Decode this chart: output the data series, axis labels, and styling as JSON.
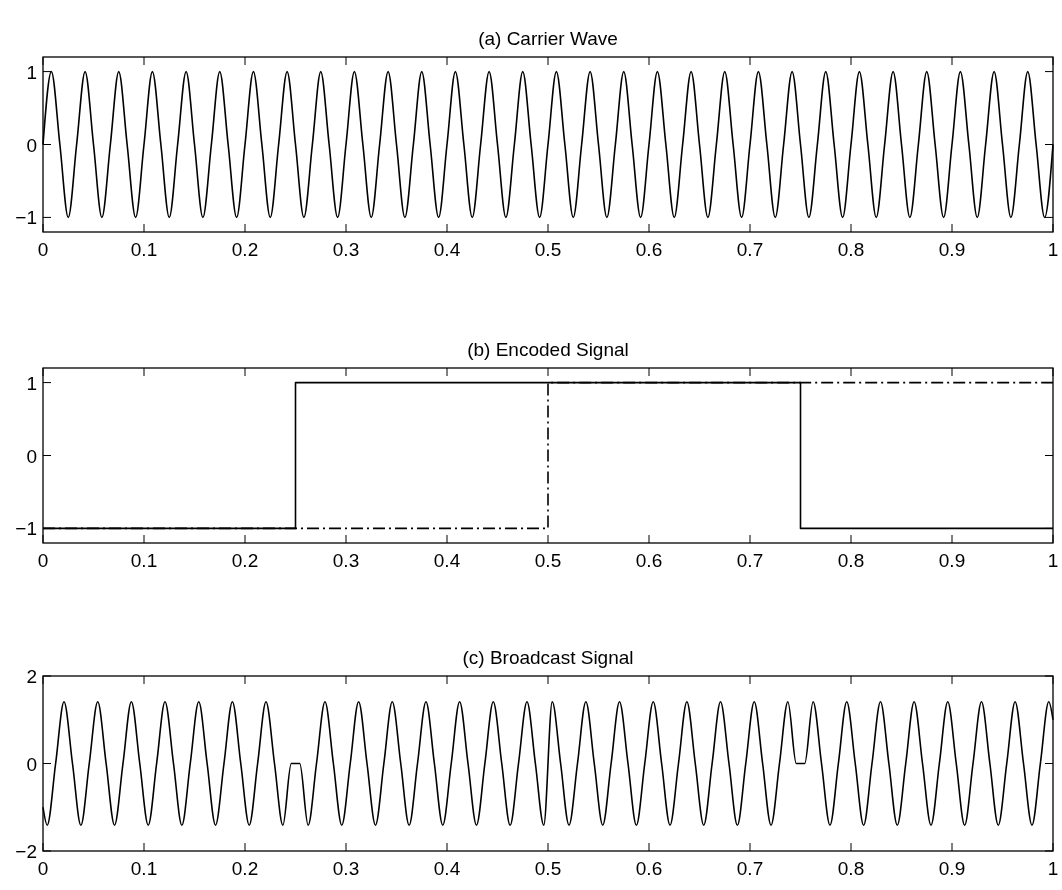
{
  "chart_data": [
    {
      "type": "line",
      "title": "(a) Carrier Wave",
      "xlim": [
        0,
        1
      ],
      "ylim": [
        -1.2,
        1.2
      ],
      "xticks": [
        0,
        0.1,
        0.2,
        0.3,
        0.4,
        0.5,
        0.6,
        0.7,
        0.8,
        0.9,
        1
      ],
      "yticks": [
        -1,
        0,
        1
      ],
      "series": [
        {
          "color": "#000000",
          "x": [
            0,
            0.0083,
            0.0167,
            0.025,
            0.0333,
            0.0417,
            0.05,
            0.0583,
            0.0667,
            0.075,
            0.0833,
            0.0917,
            0.1,
            0.1083,
            0.1167,
            0.125,
            0.1333,
            0.1417,
            0.15,
            0.1583,
            0.1667,
            0.175,
            0.1833,
            0.1917,
            0.2,
            0.2083,
            0.2167,
            0.225,
            0.2333,
            0.2417,
            0.25,
            0.2583,
            0.2667,
            0.275,
            0.2833,
            0.2917,
            0.3,
            0.3083,
            0.3167,
            0.325,
            0.3333,
            0.3417,
            0.35,
            0.3583,
            0.3667,
            0.375,
            0.3833,
            0.3917,
            0.4,
            0.4083,
            0.4167,
            0.425,
            0.4333,
            0.4417,
            0.45,
            0.4583,
            0.4667,
            0.475,
            0.4833,
            0.4917,
            0.5,
            0.5083,
            0.5167,
            0.525,
            0.5333,
            0.5417,
            0.55,
            0.5583,
            0.5667,
            0.575,
            0.5833,
            0.5917,
            0.6,
            0.6083,
            0.6167,
            0.625,
            0.6333,
            0.6417,
            0.65,
            0.6583,
            0.6667,
            0.675,
            0.6833,
            0.6917,
            0.7,
            0.7083,
            0.7167,
            0.725,
            0.7333,
            0.7417,
            0.75,
            0.7583,
            0.7667,
            0.775,
            0.7833,
            0.7917,
            0.8,
            0.8083,
            0.8167,
            0.825,
            0.8333,
            0.8417,
            0.85,
            0.8583,
            0.8667,
            0.875,
            0.8833,
            0.8917,
            0.9,
            0.9083,
            0.9167,
            0.925,
            0.9333,
            0.9417,
            0.95,
            0.9583,
            0.9667,
            0.975,
            0.9833,
            0.9917,
            1
          ],
          "values": [
            0,
            1,
            0,
            -1,
            0,
            1,
            0,
            -1,
            0,
            1,
            0,
            -1,
            0,
            1,
            0,
            -1,
            0,
            1,
            0,
            -1,
            0,
            1,
            0,
            -1,
            0,
            1,
            0,
            -1,
            0,
            1,
            0,
            -1,
            0,
            1,
            0,
            -1,
            0,
            1,
            0,
            -1,
            0,
            1,
            0,
            -1,
            0,
            1,
            0,
            -1,
            0,
            1,
            0,
            -1,
            0,
            1,
            0,
            -1,
            0,
            1,
            0,
            -1,
            0,
            1,
            0,
            -1,
            0,
            1,
            0,
            -1,
            0,
            1,
            0,
            -1,
            0,
            1,
            0,
            -1,
            0,
            1,
            0,
            -1,
            0,
            1,
            0,
            -1,
            0,
            1,
            0,
            -1,
            0,
            1,
            0,
            -1,
            0,
            1,
            0,
            -1,
            0,
            1,
            0,
            -1,
            0,
            1,
            0,
            -1,
            0,
            1,
            0,
            -1,
            0,
            1,
            0,
            -1,
            0,
            1,
            0,
            -1,
            0,
            1,
            0,
            -1,
            0
          ]
        }
      ]
    },
    {
      "type": "step",
      "title": "(b) Encoded Signal",
      "xlim": [
        0,
        1
      ],
      "ylim": [
        -1.2,
        1.2
      ],
      "xticks": [
        0,
        0.1,
        0.2,
        0.3,
        0.4,
        0.5,
        0.6,
        0.7,
        0.8,
        0.9,
        1
      ],
      "yticks": [
        -1,
        0,
        1
      ],
      "series": [
        {
          "color": "#000000",
          "line_style": "solid",
          "x": [
            0,
            0.25,
            0.75,
            1
          ],
          "values": [
            -1,
            1,
            -1,
            -1
          ]
        },
        {
          "color": "#000000",
          "line_style": "dashed",
          "x": [
            0,
            0.5,
            1
          ],
          "values": [
            -1,
            1,
            1
          ]
        }
      ]
    },
    {
      "type": "line",
      "title": "(c) Broadcast Signal",
      "xlim": [
        0,
        1
      ],
      "ylim": [
        -2,
        2
      ],
      "xticks": [
        0,
        0.1,
        0.2,
        0.3,
        0.4,
        0.5,
        0.6,
        0.7,
        0.8,
        0.9,
        1
      ],
      "yticks": [
        -2,
        0,
        2
      ],
      "series": [
        {
          "color": "#000000",
          "x": [
            0,
            0.0042,
            0.0125,
            0.0208,
            0.0292,
            0.0375,
            0.0458,
            0.0542,
            0.0625,
            0.0708,
            0.0792,
            0.0875,
            0.0958,
            0.1042,
            0.1125,
            0.1208,
            0.1292,
            0.1375,
            0.1458,
            0.1542,
            0.1625,
            0.1708,
            0.1792,
            0.1875,
            0.1958,
            0.2042,
            0.2125,
            0.2208,
            0.2292,
            0.2375,
            0.2458,
            0.2542,
            0.2625,
            0.2708,
            0.2792,
            0.2875,
            0.2958,
            0.3042,
            0.3125,
            0.3208,
            0.3292,
            0.3375,
            0.3458,
            0.3542,
            0.3625,
            0.3708,
            0.3792,
            0.3875,
            0.3958,
            0.4042,
            0.4125,
            0.4208,
            0.4292,
            0.4375,
            0.4458,
            0.4542,
            0.4625,
            0.4708,
            0.4792,
            0.4875,
            0.4958,
            0.5042,
            0.5125,
            0.5208,
            0.5292,
            0.5375,
            0.5458,
            0.5542,
            0.5625,
            0.5708,
            0.5792,
            0.5875,
            0.5958,
            0.6042,
            0.6125,
            0.6208,
            0.6292,
            0.6375,
            0.6458,
            0.6542,
            0.6625,
            0.6708,
            0.6792,
            0.6875,
            0.6958,
            0.7042,
            0.7125,
            0.7208,
            0.7292,
            0.7375,
            0.7458,
            0.7542,
            0.7625,
            0.7708,
            0.7792,
            0.7875,
            0.7958,
            0.8042,
            0.8125,
            0.8208,
            0.8292,
            0.8375,
            0.8458,
            0.8542,
            0.8625,
            0.8708,
            0.8792,
            0.8875,
            0.8958,
            0.9042,
            0.9125,
            0.9208,
            0.9292,
            0.9375,
            0.9458,
            0.9542,
            0.9625,
            0.9708,
            0.9792,
            0.9875,
            0.9958,
            1
          ],
          "values": [
            -1,
            -1.41,
            0,
            1.41,
            0,
            -1.41,
            0,
            1.41,
            0,
            -1.41,
            0,
            1.41,
            0,
            -1.41,
            0,
            1.41,
            0,
            -1.41,
            0,
            1.41,
            0,
            -1.41,
            0,
            1.41,
            0,
            -1.41,
            0,
            1.41,
            0,
            -1.41,
            0,
            0,
            -1.41,
            0,
            1.41,
            0,
            -1.41,
            0,
            1.41,
            0,
            -1.41,
            0,
            1.41,
            0,
            -1.41,
            0,
            1.41,
            0,
            -1.41,
            0,
            1.41,
            0,
            -1.41,
            0,
            1.41,
            0,
            -1.41,
            0,
            1.41,
            0,
            -1.41,
            1.41,
            0,
            -1.41,
            0,
            1.41,
            0,
            -1.41,
            0,
            1.41,
            0,
            -1.41,
            0,
            1.41,
            0,
            -1.41,
            0,
            1.41,
            0,
            -1.41,
            0,
            1.41,
            0,
            -1.41,
            0,
            1.41,
            0,
            -1.41,
            0,
            1.41,
            0,
            0,
            1.41,
            0,
            -1.41,
            0,
            1.41,
            0,
            -1.41,
            0,
            1.41,
            0,
            -1.41,
            0,
            1.41,
            0,
            -1.41,
            0,
            1.41,
            0,
            -1.41,
            0,
            1.41,
            0,
            -1.41,
            0,
            1.41,
            0,
            -1.41,
            0,
            1.41,
            1
          ]
        }
      ]
    }
  ]
}
